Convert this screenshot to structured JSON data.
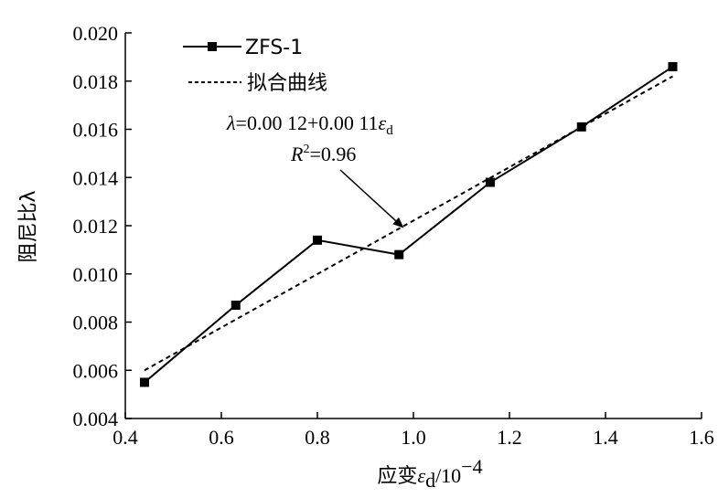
{
  "chart_data": {
    "type": "line",
    "xlabel_prefix": "应变",
    "xlabel_symbol": "ε",
    "xlabel_sub": "d",
    "xlabel_unit": "/10",
    "xlabel_exp": "−4",
    "ylabel": "阻尼比λ",
    "xlim": [
      0.4,
      1.6
    ],
    "ylim": [
      0.004,
      0.02
    ],
    "xticks": [
      "0.4",
      "0.6",
      "0.8",
      "1.0",
      "1.2",
      "1.4",
      "1.6"
    ],
    "yticks": [
      "0.004",
      "0.006",
      "0.008",
      "0.010",
      "0.012",
      "0.014",
      "0.016",
      "0.018",
      "0.020"
    ],
    "grid": false,
    "legend_position": "top-left",
    "series": [
      {
        "name": "ZFS-1",
        "style": "solid-square-markers",
        "color": "#000000",
        "x": [
          0.44,
          0.63,
          0.8,
          0.97,
          1.16,
          1.35,
          1.54
        ],
        "y": [
          0.0055,
          0.0087,
          0.0114,
          0.0108,
          0.0138,
          0.0161,
          0.0186
        ]
      },
      {
        "name": "拟合曲线",
        "style": "dashed",
        "color": "#000000",
        "x": [
          0.44,
          1.54
        ],
        "y": [
          0.006,
          0.0182
        ]
      }
    ],
    "annotation": {
      "eq_lambda": "λ",
      "eq_body": "=0.00 12+0.00 11",
      "eq_eps": "ε",
      "eq_sub": "d",
      "r2_letter": "R",
      "r2_exp": "2",
      "r2_value": "=0.96",
      "arrow_target": [
        0.98,
        0.0119
      ]
    }
  }
}
